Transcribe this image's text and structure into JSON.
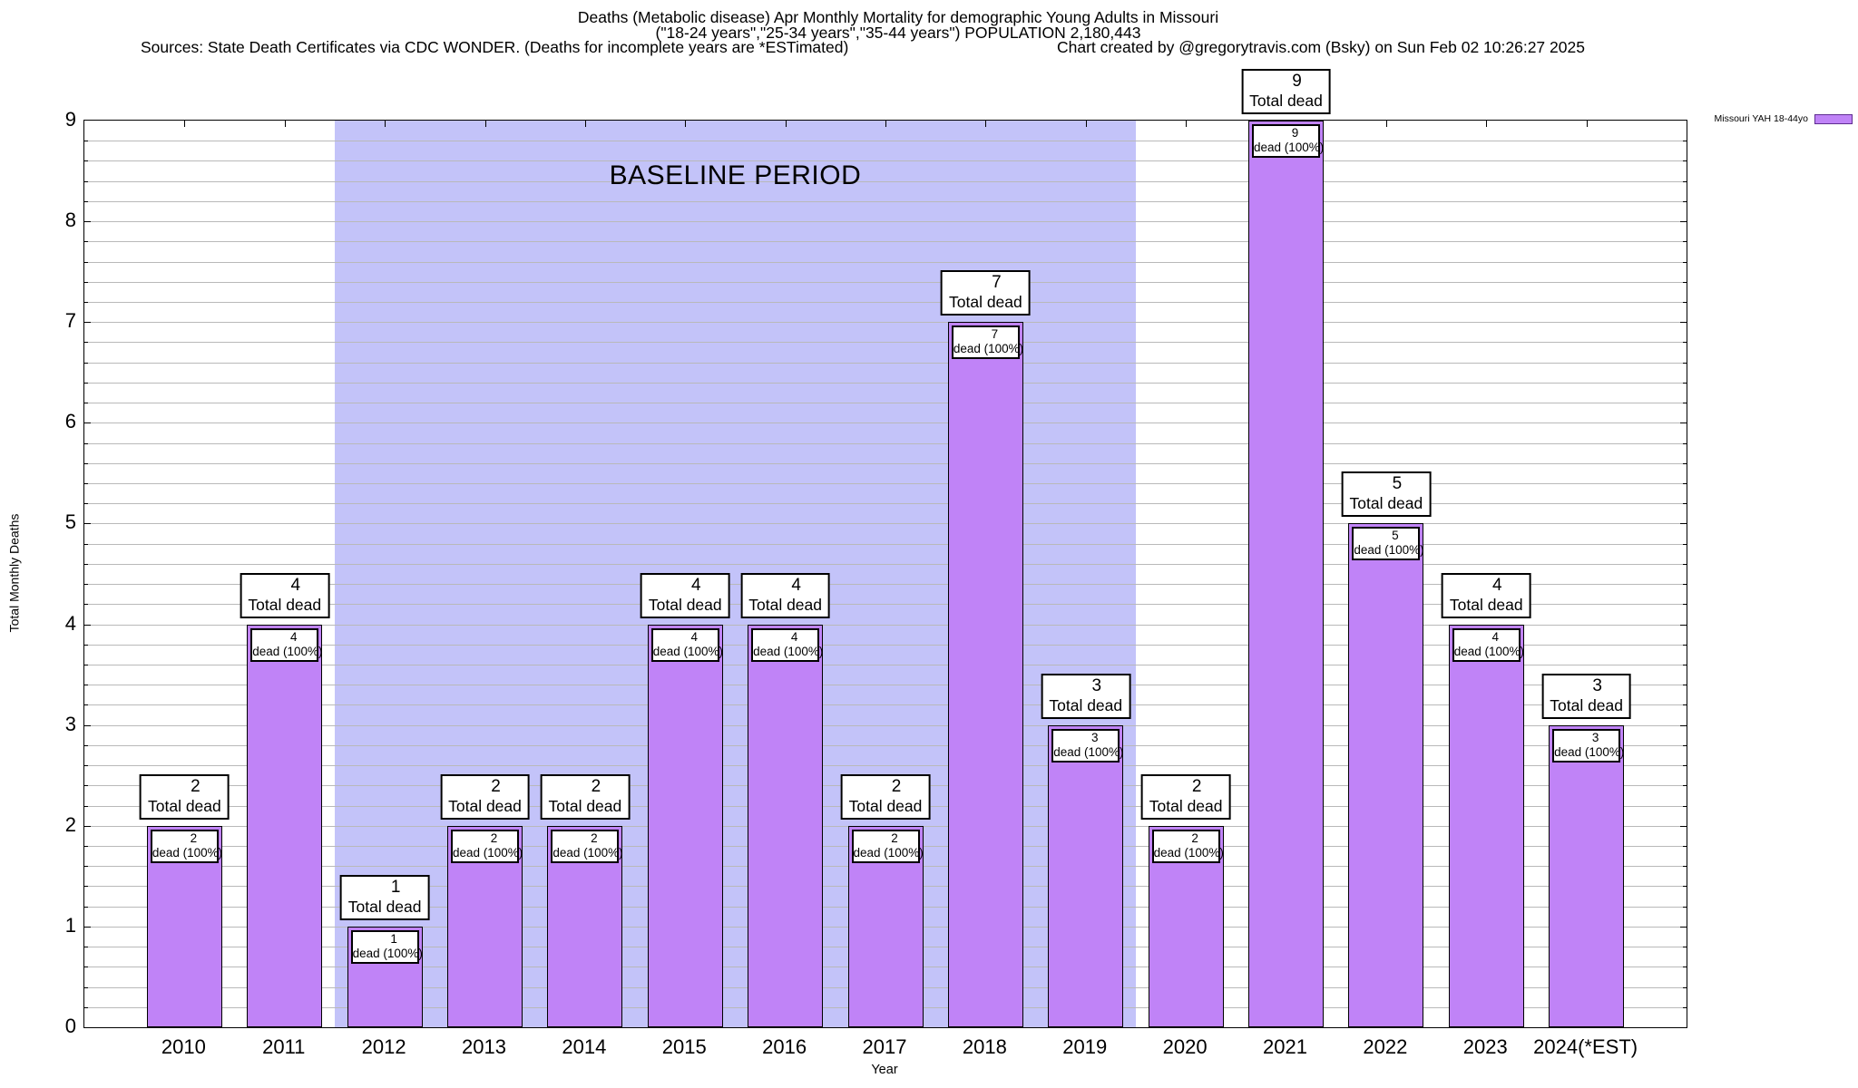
{
  "header": {
    "title_line1": "Deaths (Metabolic disease) Apr Monthly Mortality for demographic Young Adults in Missouri",
    "title_line2": "(\"18-24 years\",\"25-34 years\",\"35-44 years\") POPULATION 2,180,443",
    "sources_note": "Sources: State Death Certificates via CDC WONDER. (Deaths for incomplete years are *ESTimated)",
    "credit_note": "Chart created by @gregorytravis.com (Bsky) on Sun Feb 02 10:26:27 2025"
  },
  "legend": {
    "label": "Missouri YAH 18-44yo"
  },
  "axes": {
    "ylabel": "Total Monthly Deaths",
    "xlabel": "Year"
  },
  "annotation_labels": {
    "total": "Total dead",
    "dead_pct": "dead (100%)"
  },
  "colors": {
    "bar_fill": "#c083f7",
    "bar_border": "#000000",
    "baseline_region": "#c3c3f9",
    "gridline": "#b9b9b9",
    "legend_swatch_border": "#5e2d91"
  },
  "chart_data": {
    "type": "bar",
    "title": "Deaths (Metabolic disease) Apr Monthly Mortality for demographic Young Adults in Missouri",
    "xlabel": "Year",
    "ylabel": "Total Monthly Deaths",
    "categories": [
      "2010",
      "2011",
      "2012",
      "2013",
      "2014",
      "2015",
      "2016",
      "2017",
      "2018",
      "2019",
      "2020",
      "2021",
      "2022",
      "2023",
      "2024(*EST)"
    ],
    "series": [
      {
        "name": "Missouri YAH 18-44yo",
        "values": [
          2,
          4,
          1,
          2,
          2,
          4,
          4,
          2,
          7,
          3,
          2,
          9,
          5,
          4,
          3
        ]
      }
    ],
    "ylim": [
      0,
      9
    ],
    "ytick_step": 1,
    "minor_grid_step": 0.2,
    "grid": true,
    "legend_position": "top-right",
    "bar_annotation_above": "{value} Total dead",
    "bar_annotation_inside": "{value} dead (100%)",
    "baseline_period": {
      "label": "BASELINE PERIOD",
      "from_category": "2012",
      "to_category": "2019"
    }
  }
}
